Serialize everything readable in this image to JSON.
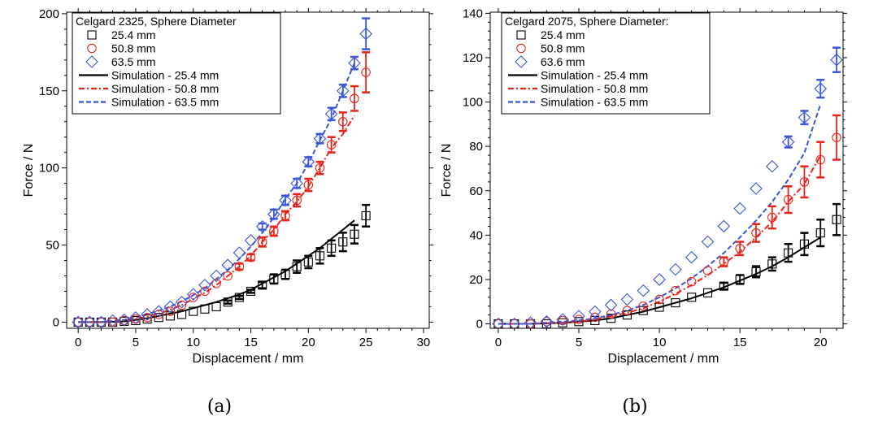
{
  "chart_data": [
    {
      "type": "scatter",
      "panel_label": "(a)",
      "xlabel": "Displacement / mm",
      "ylabel": "Force / N",
      "xlim": [
        -1,
        30.5
      ],
      "ylim": [
        -4,
        201
      ],
      "xticks": [
        0,
        5,
        10,
        15,
        20,
        25,
        30
      ],
      "yticks": [
        0,
        50,
        100,
        150,
        200
      ],
      "legend_title": "Celgard 2325, Sphere Diameter",
      "legend_position": "top-left",
      "series": [
        {
          "name": "25.4 mm",
          "kind": "points",
          "marker": "square",
          "color": "#000000",
          "x": [
            0,
            1,
            2,
            3,
            4,
            5,
            6,
            7,
            8,
            9,
            10,
            11,
            12,
            13,
            14,
            15,
            16,
            17,
            18,
            19,
            20,
            21,
            22,
            23,
            24,
            25
          ],
          "y": [
            0,
            0,
            0,
            0,
            0.5,
            1,
            2,
            3,
            4,
            5,
            7,
            8.5,
            10,
            13,
            16,
            20,
            24,
            28,
            31,
            36,
            39,
            43,
            48,
            52,
            57,
            69
          ],
          "err": [
            0,
            0,
            0,
            0,
            0,
            0,
            0,
            0,
            0,
            0,
            0,
            0,
            0,
            1,
            1,
            1,
            2,
            3,
            3,
            4,
            4,
            5,
            5,
            6,
            6,
            7
          ]
        },
        {
          "name": "50.8 mm",
          "kind": "points",
          "marker": "circle",
          "color": "#e8241a",
          "x": [
            0,
            1,
            2,
            3,
            4,
            5,
            6,
            7,
            8,
            9,
            10,
            11,
            12,
            13,
            14,
            15,
            16,
            17,
            18,
            19,
            20,
            21,
            22,
            23,
            24,
            25
          ],
          "y": [
            0,
            0,
            0,
            0,
            1,
            2,
            3,
            5,
            7,
            11,
            16,
            20,
            25,
            30,
            36,
            42,
            52,
            59,
            69,
            79,
            89,
            100,
            115,
            130,
            145,
            162
          ],
          "err": [
            0,
            0,
            0,
            0,
            0,
            0,
            0,
            0,
            0,
            0,
            0,
            0,
            0,
            0,
            2,
            2,
            3,
            3,
            3,
            4,
            4,
            4,
            5,
            6,
            8,
            13
          ]
        },
        {
          "name": "63.5 mm",
          "kind": "points",
          "marker": "diamond",
          "color": "#3b56d9",
          "x": [
            0,
            1,
            2,
            3,
            4,
            5,
            6,
            7,
            8,
            9,
            10,
            11,
            12,
            13,
            14,
            15,
            16,
            17,
            18,
            19,
            20,
            21,
            22,
            23,
            24,
            25
          ],
          "y": [
            0,
            0,
            0,
            1,
            1.5,
            3,
            5,
            7,
            10,
            13,
            18,
            24,
            30,
            37,
            45,
            53,
            62,
            70,
            79,
            90,
            104,
            119,
            135,
            150,
            168,
            187
          ],
          "err": [
            0,
            0,
            0,
            0,
            0,
            0,
            0,
            0,
            0,
            0,
            0,
            0,
            0,
            0,
            0,
            0,
            2,
            3,
            3,
            3,
            3,
            3,
            4,
            4,
            4,
            10
          ]
        },
        {
          "name": "Simulation - 25.4 mm",
          "kind": "line",
          "dash": "solid",
          "color": "#000000",
          "x": [
            0,
            2,
            4,
            5,
            6,
            7,
            8,
            9,
            10,
            11,
            12,
            13,
            14,
            15,
            16,
            17,
            18,
            19,
            20,
            21,
            22,
            23,
            24
          ],
          "y": [
            0,
            0,
            0.5,
            1.5,
            2.5,
            4,
            5.5,
            7,
            9,
            11,
            13,
            15.5,
            18,
            21,
            25,
            29,
            33,
            38,
            43,
            48,
            54,
            60,
            66
          ]
        },
        {
          "name": "Simulation - 50.8 mm",
          "kind": "line",
          "dash": "dashdot",
          "color": "#e8241a",
          "x": [
            0,
            2,
            4,
            5,
            6,
            7,
            8,
            9,
            10,
            11,
            12,
            13,
            14,
            15,
            16,
            17,
            18,
            19,
            20,
            21,
            22,
            23,
            24
          ],
          "y": [
            0,
            0,
            1,
            2,
            3.5,
            5.5,
            8,
            11,
            15,
            19,
            24,
            30,
            36,
            43,
            52,
            60,
            70,
            78,
            88,
            100,
            113,
            122,
            134
          ]
        },
        {
          "name": "Simulation - 63.5 mm",
          "kind": "line",
          "dash": "dashed",
          "color": "#3b56d9",
          "x": [
            0,
            2,
            4,
            5,
            6,
            7,
            8,
            9,
            10,
            11,
            12,
            13,
            14,
            15,
            16,
            17,
            18,
            19,
            20,
            21,
            22,
            23,
            24
          ],
          "y": [
            0,
            0,
            1.5,
            3,
            5,
            7.5,
            10,
            13.5,
            17.5,
            22,
            28,
            34,
            41,
            49,
            58,
            68,
            80,
            90,
            103,
            118,
            132,
            150,
            168
          ]
        }
      ]
    },
    {
      "type": "scatter",
      "panel_label": "(b)",
      "xlabel": "Displacement / mm",
      "ylabel": "Force / N",
      "xlim": [
        -0.5,
        21.4
      ],
      "ylim": [
        -2,
        140.5
      ],
      "xticks": [
        0,
        5,
        10,
        15,
        20
      ],
      "yticks": [
        0,
        20,
        40,
        60,
        80,
        100,
        120,
        140
      ],
      "legend_title": "Celgard 2075, Sphere Diameter:",
      "legend_position": "top-left",
      "series": [
        {
          "name": "25.4 mm",
          "kind": "points",
          "marker": "square",
          "color": "#000000",
          "x": [
            0,
            1,
            2,
            3,
            4,
            5,
            6,
            7,
            8,
            9,
            10,
            11,
            12,
            13,
            14,
            15,
            16,
            17,
            18,
            19,
            20,
            21
          ],
          "y": [
            0,
            0,
            0,
            0,
            0.5,
            1,
            1.5,
            2.5,
            4,
            6,
            7.5,
            9.5,
            12,
            14,
            17,
            20,
            23.5,
            27,
            32,
            36,
            41,
            47
          ],
          "err": [
            0,
            0,
            0,
            0,
            0,
            0,
            0,
            0,
            0,
            0,
            0,
            0,
            0,
            0,
            1.5,
            2,
            2.5,
            3,
            4,
            5,
            6,
            7
          ]
        },
        {
          "name": "50.8 mm",
          "kind": "points",
          "marker": "circle",
          "color": "#e8241a",
          "x": [
            0,
            1,
            2,
            3,
            4,
            5,
            6,
            7,
            8,
            9,
            10,
            11,
            12,
            13,
            14,
            15,
            16,
            17,
            18,
            19,
            20,
            21
          ],
          "y": [
            0,
            0,
            0,
            1,
            1.5,
            2,
            3,
            4.5,
            6,
            8,
            11,
            15,
            19,
            24,
            28,
            34,
            41,
            48,
            56,
            64,
            74,
            84
          ],
          "err": [
            0,
            0,
            0,
            0,
            0,
            0,
            0,
            0,
            0,
            0,
            0,
            0,
            0,
            0,
            2,
            3,
            4,
            5,
            6,
            7,
            8,
            10
          ]
        },
        {
          "name": "63.6 mm",
          "kind": "points",
          "marker": "diamond",
          "color": "#3b56d9",
          "x": [
            0,
            1,
            2,
            3,
            4,
            5,
            6,
            7,
            8,
            9,
            10,
            11,
            12,
            13,
            14,
            15,
            16,
            17,
            18,
            19,
            20,
            21
          ],
          "y": [
            0,
            0,
            0.5,
            1,
            2,
            3.5,
            5.5,
            8.5,
            11,
            15,
            20,
            24.5,
            30,
            37,
            44,
            52,
            61,
            71,
            82,
            93,
            106,
            119
          ],
          "err": [
            0,
            0,
            0,
            0,
            0,
            0,
            0,
            0,
            0,
            0,
            0,
            0,
            0,
            0,
            0,
            0,
            0,
            0,
            2.5,
            3,
            4,
            5.5
          ]
        },
        {
          "name": "Simulation - 25.4 mm",
          "kind": "line",
          "dash": "solid",
          "color": "#000000",
          "x": [
            0,
            2,
            4,
            5,
            6,
            7,
            8,
            9,
            10,
            11,
            12,
            13,
            14,
            15,
            16,
            17,
            18,
            19,
            20
          ],
          "y": [
            0,
            0,
            0.5,
            1,
            1.5,
            2.5,
            4,
            5.5,
            7.5,
            9.5,
            11.5,
            14,
            16.5,
            19.5,
            22.5,
            26,
            30,
            34.5,
            39
          ]
        },
        {
          "name": "Simulation - 50.8 mm",
          "kind": "line",
          "dash": "dashdot",
          "color": "#e8241a",
          "x": [
            0,
            2,
            4,
            5,
            6,
            7,
            8,
            9,
            10,
            11,
            12,
            13,
            14,
            15,
            16,
            17,
            18,
            19,
            20
          ],
          "y": [
            0,
            0,
            0.5,
            1,
            2,
            3.5,
            5,
            7,
            10,
            13.5,
            17.5,
            22,
            27,
            32.5,
            39,
            46,
            55,
            63,
            76
          ]
        },
        {
          "name": "Simulation - 63.5 mm",
          "kind": "line",
          "dash": "dashed",
          "color": "#3b56d9",
          "x": [
            0,
            2,
            4,
            5,
            6,
            7,
            8,
            9,
            10,
            11,
            12,
            13,
            14,
            15,
            16,
            17,
            18,
            19,
            20
          ],
          "y": [
            0,
            0,
            1,
            1.5,
            2.5,
            4,
            6,
            8.5,
            12,
            16,
            20.5,
            26,
            32,
            39,
            46.5,
            55,
            65,
            77,
            99
          ]
        }
      ]
    }
  ]
}
